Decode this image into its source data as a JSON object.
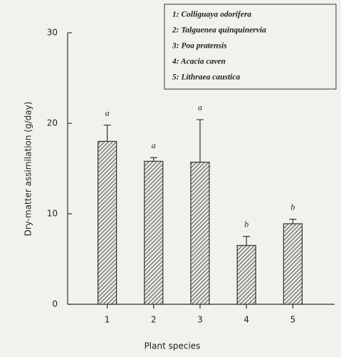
{
  "chart_data": {
    "type": "bar",
    "x_label": "Plant species",
    "y_label": "Dry-matter assimilation (g/day)",
    "categories": [
      "1",
      "2",
      "3",
      "4",
      "5"
    ],
    "values": [
      18.0,
      15.8,
      15.7,
      6.5,
      8.9
    ],
    "errors": [
      1.8,
      0.4,
      4.7,
      1.0,
      0.5
    ],
    "annotations": [
      "a",
      "a",
      "a",
      "b",
      "b"
    ],
    "legend": [
      "1: Colliguaya odorifera",
      "2: Talguenea quinquinervia",
      "3: Poa pratensis",
      "4: Acacia caven",
      "5: Lithraea caustica"
    ],
    "legend_position": "upper right",
    "color": "#333333",
    "ylim": [
      0,
      30
    ],
    "yticks": [
      0,
      10,
      20,
      30
    ],
    "grid": false
  }
}
